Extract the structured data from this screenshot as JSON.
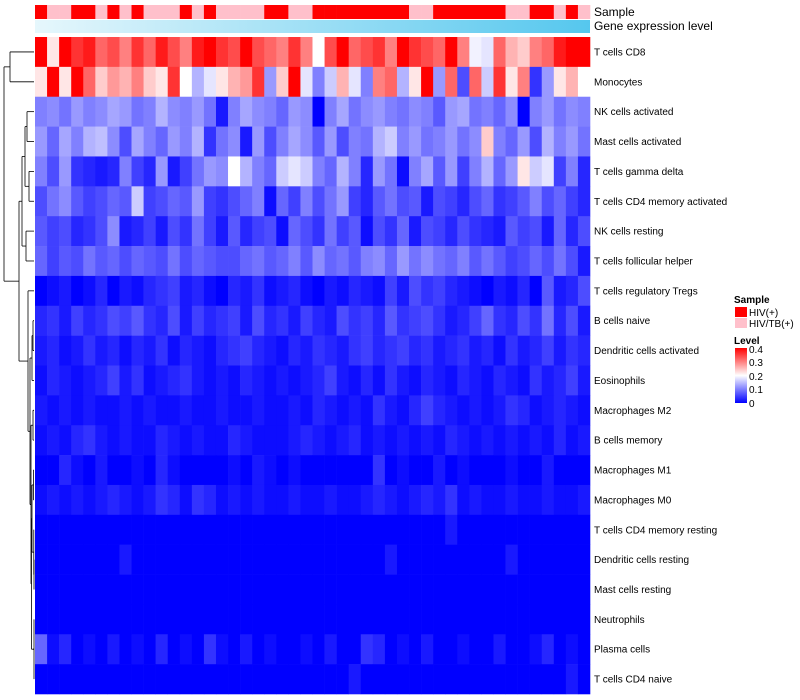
{
  "chart_data": {
    "type": "heatmap",
    "title": "",
    "rows": [
      "T cells CD8",
      "Monocytes",
      "NK cells activated",
      "Mast cells activated",
      "T cells gamma delta",
      "T cells CD4 memory activated",
      "NK cells resting",
      "T cells follicular helper",
      "T cells regulatory  Tregs",
      "B cells naive",
      "Dendritic cells activated",
      "Eosinophils",
      "Macrophages M2",
      "B cells memory",
      "Macrophages M1",
      "Macrophages M0",
      "T cells CD4 memory resting",
      "Dendritic cells resting",
      "Mast cells resting",
      "Neutrophils",
      "Plasma cells",
      "T cells CD4 naive"
    ],
    "n_columns": 46,
    "sample_groups": [
      "HIV(+)",
      "HIV/TB(+)",
      "HIV/TB(+)",
      "HIV(+)",
      "HIV(+)",
      "HIV/TB(+)",
      "HIV(+)",
      "HIV/TB(+)",
      "HIV(+)",
      "HIV/TB(+)",
      "HIV/TB(+)",
      "HIV/TB(+)",
      "HIV(+)",
      "HIV/TB(+)",
      "HIV(+)",
      "HIV/TB(+)",
      "HIV/TB(+)",
      "HIV/TB(+)",
      "HIV/TB(+)",
      "HIV(+)",
      "HIV(+)",
      "HIV/TB(+)",
      "HIV/TB(+)",
      "HIV(+)",
      "HIV(+)",
      "HIV(+)",
      "HIV(+)",
      "HIV(+)",
      "HIV(+)",
      "HIV(+)",
      "HIV(+)",
      "HIV/TB(+)",
      "HIV/TB(+)",
      "HIV(+)",
      "HIV(+)",
      "HIV(+)",
      "HIV(+)",
      "HIV(+)",
      "HIV(+)",
      "HIV/TB(+)",
      "HIV/TB(+)",
      "HIV(+)",
      "HIV(+)",
      "HIV/TB(+)",
      "HIV(+)",
      "HIV/TB(+)"
    ],
    "annotations": [
      {
        "label": "Sample"
      },
      {
        "label": "Gene expression level"
      }
    ],
    "values": [
      [
        0.4,
        0.22,
        0.4,
        0.36,
        0.38,
        0.32,
        0.34,
        0.3,
        0.36,
        0.32,
        0.38,
        0.34,
        0.3,
        0.38,
        0.4,
        0.36,
        0.34,
        0.4,
        0.34,
        0.32,
        0.3,
        0.36,
        0.3,
        0.2,
        0.34,
        0.4,
        0.32,
        0.34,
        0.36,
        0.3,
        0.4,
        0.36,
        0.34,
        0.32,
        0.4,
        0.3,
        0.19,
        0.18,
        0.32,
        0.26,
        0.24,
        0.3,
        0.32,
        0.38,
        0.4,
        0.4
      ],
      [
        0.22,
        0.4,
        0.22,
        0.4,
        0.32,
        0.24,
        0.28,
        0.26,
        0.3,
        0.24,
        0.22,
        0.36,
        0.2,
        0.14,
        0.18,
        0.22,
        0.26,
        0.28,
        0.36,
        0.12,
        0.24,
        0.4,
        0.18,
        0.1,
        0.16,
        0.26,
        0.18,
        0.1,
        0.3,
        0.32,
        0.14,
        0.22,
        0.4,
        0.12,
        0.32,
        0.06,
        0.32,
        0.16,
        0.36,
        0.22,
        0.3,
        0.04,
        0.12,
        0.22,
        0.26,
        0.2
      ],
      [
        0.1,
        0.11,
        0.09,
        0.12,
        0.1,
        0.11,
        0.13,
        0.12,
        0.09,
        0.1,
        0.14,
        0.11,
        0.1,
        0.12,
        0.09,
        0.02,
        0.1,
        0.13,
        0.11,
        0.1,
        0.08,
        0.12,
        0.11,
        0.0,
        0.1,
        0.13,
        0.09,
        0.11,
        0.12,
        0.1,
        0.09,
        0.11,
        0.1,
        0.07,
        0.12,
        0.13,
        0.09,
        0.1,
        0.08,
        0.11,
        0.0,
        0.1,
        0.12,
        0.09,
        0.11,
        0.1
      ],
      [
        0.12,
        0.08,
        0.13,
        0.1,
        0.14,
        0.15,
        0.11,
        0.06,
        0.13,
        0.1,
        0.08,
        0.12,
        0.1,
        0.14,
        0.04,
        0.09,
        0.11,
        0.02,
        0.12,
        0.06,
        0.1,
        0.13,
        0.11,
        0.07,
        0.12,
        0.06,
        0.1,
        0.09,
        0.14,
        0.16,
        0.1,
        0.12,
        0.09,
        0.1,
        0.12,
        0.09,
        0.11,
        0.24,
        0.1,
        0.08,
        0.12,
        0.06,
        0.14,
        0.1,
        0.12,
        0.09
      ],
      [
        0.1,
        0.06,
        0.12,
        0.04,
        0.03,
        0.02,
        0.03,
        0.1,
        0.05,
        0.03,
        0.12,
        0.02,
        0.05,
        0.09,
        0.12,
        0.11,
        0.2,
        0.14,
        0.1,
        0.08,
        0.16,
        0.18,
        0.16,
        0.1,
        0.08,
        0.14,
        0.1,
        0.03,
        0.12,
        0.09,
        0.01,
        0.1,
        0.13,
        0.07,
        0.12,
        0.05,
        0.1,
        0.14,
        0.08,
        0.12,
        0.22,
        0.16,
        0.18,
        0.05,
        0.1,
        0.03
      ],
      [
        0.06,
        0.09,
        0.11,
        0.07,
        0.05,
        0.06,
        0.08,
        0.07,
        0.16,
        0.05,
        0.06,
        0.08,
        0.07,
        0.12,
        0.05,
        0.04,
        0.06,
        0.08,
        0.1,
        0.01,
        0.08,
        0.05,
        0.1,
        0.06,
        0.09,
        0.12,
        0.05,
        0.03,
        0.07,
        0.09,
        0.06,
        0.07,
        0.02,
        0.06,
        0.05,
        0.03,
        0.06,
        0.08,
        0.04,
        0.05,
        0.07,
        0.1,
        0.06,
        0.08,
        0.05,
        0.03
      ],
      [
        0.07,
        0.05,
        0.06,
        0.03,
        0.04,
        0.06,
        0.11,
        0.02,
        0.03,
        0.05,
        0.02,
        0.06,
        0.04,
        0.09,
        0.05,
        0.02,
        0.07,
        0.03,
        0.05,
        0.06,
        0.01,
        0.08,
        0.06,
        0.04,
        0.09,
        0.05,
        0.07,
        0.01,
        0.06,
        0.04,
        0.08,
        0.02,
        0.06,
        0.05,
        0.03,
        0.06,
        0.04,
        0.03,
        0.02,
        0.07,
        0.05,
        0.06,
        0.02,
        0.08,
        0.03,
        0.06
      ],
      [
        0.08,
        0.05,
        0.07,
        0.06,
        0.09,
        0.07,
        0.08,
        0.06,
        0.08,
        0.07,
        0.06,
        0.09,
        0.06,
        0.08,
        0.07,
        0.06,
        0.06,
        0.08,
        0.09,
        0.07,
        0.08,
        0.1,
        0.07,
        0.11,
        0.08,
        0.09,
        0.07,
        0.1,
        0.11,
        0.08,
        0.12,
        0.09,
        0.11,
        0.09,
        0.08,
        0.1,
        0.07,
        0.09,
        0.07,
        0.05,
        0.06,
        0.08,
        0.06,
        0.09,
        0.06,
        0.02
      ],
      [
        0.0,
        0.01,
        0.02,
        0.0,
        0.01,
        0.03,
        0.0,
        0.02,
        0.01,
        0.03,
        0.04,
        0.05,
        0.02,
        0.03,
        0.01,
        0.0,
        0.03,
        0.02,
        0.04,
        0.01,
        0.02,
        0.03,
        0.01,
        0.0,
        0.02,
        0.01,
        0.03,
        0.02,
        0.01,
        0.05,
        0.02,
        0.06,
        0.04,
        0.05,
        0.03,
        0.02,
        0.01,
        0.0,
        0.02,
        0.01,
        0.03,
        0.0,
        0.07,
        0.02,
        0.03,
        0.06
      ],
      [
        0.03,
        0.04,
        0.02,
        0.05,
        0.03,
        0.04,
        0.06,
        0.05,
        0.07,
        0.04,
        0.03,
        0.06,
        0.02,
        0.05,
        0.03,
        0.04,
        0.05,
        0.02,
        0.06,
        0.03,
        0.04,
        0.02,
        0.05,
        0.03,
        0.02,
        0.06,
        0.04,
        0.05,
        0.03,
        0.07,
        0.04,
        0.05,
        0.06,
        0.04,
        0.02,
        0.03,
        0.05,
        0.08,
        0.04,
        0.03,
        0.06,
        0.04,
        0.09,
        0.03,
        0.06,
        0.02
      ],
      [
        0.02,
        0.03,
        0.01,
        0.02,
        0.04,
        0.02,
        0.03,
        0.01,
        0.03,
        0.02,
        0.04,
        0.01,
        0.03,
        0.02,
        0.01,
        0.03,
        0.04,
        0.05,
        0.03,
        0.02,
        0.01,
        0.03,
        0.02,
        0.04,
        0.03,
        0.02,
        0.04,
        0.05,
        0.03,
        0.04,
        0.05,
        0.03,
        0.04,
        0.02,
        0.03,
        0.04,
        0.02,
        0.03,
        0.01,
        0.04,
        0.02,
        0.03,
        0.05,
        0.02,
        0.04,
        0.03
      ],
      [
        0.01,
        0.03,
        0.02,
        0.01,
        0.02,
        0.03,
        0.05,
        0.02,
        0.04,
        0.01,
        0.02,
        0.03,
        0.04,
        0.02,
        0.01,
        0.02,
        0.01,
        0.03,
        0.02,
        0.01,
        0.02,
        0.01,
        0.02,
        0.03,
        0.05,
        0.02,
        0.01,
        0.03,
        0.01,
        0.04,
        0.02,
        0.01,
        0.03,
        0.02,
        0.01,
        0.03,
        0.02,
        0.01,
        0.03,
        0.02,
        0.01,
        0.04,
        0.02,
        0.03,
        0.05,
        0.02
      ],
      [
        0.02,
        0.01,
        0.02,
        0.01,
        0.02,
        0.01,
        0.01,
        0.02,
        0.01,
        0.02,
        0.01,
        0.01,
        0.02,
        0.01,
        0.01,
        0.02,
        0.01,
        0.01,
        0.02,
        0.01,
        0.01,
        0.02,
        0.01,
        0.03,
        0.02,
        0.01,
        0.02,
        0.01,
        0.04,
        0.02,
        0.01,
        0.03,
        0.05,
        0.03,
        0.02,
        0.01,
        0.02,
        0.01,
        0.02,
        0.04,
        0.03,
        0.01,
        0.02,
        0.03,
        0.02,
        0.01
      ],
      [
        0.01,
        0.02,
        0.01,
        0.03,
        0.04,
        0.02,
        0.01,
        0.02,
        0.01,
        0.01,
        0.03,
        0.02,
        0.01,
        0.02,
        0.01,
        0.01,
        0.03,
        0.02,
        0.01,
        0.01,
        0.01,
        0.02,
        0.03,
        0.02,
        0.01,
        0.02,
        0.03,
        0.01,
        0.02,
        0.01,
        0.02,
        0.01,
        0.02,
        0.01,
        0.03,
        0.02,
        0.01,
        0.02,
        0.01,
        0.02,
        0.01,
        0.02,
        0.01,
        0.03,
        0.01,
        0.02
      ],
      [
        0.0,
        0.0,
        0.03,
        0.01,
        0.0,
        0.02,
        0.0,
        0.0,
        0.01,
        0.0,
        0.03,
        0.01,
        0.0,
        0.0,
        0.0,
        0.0,
        0.01,
        0.0,
        0.02,
        0.01,
        0.0,
        0.01,
        0.0,
        0.0,
        0.0,
        0.0,
        0.0,
        0.0,
        0.04,
        0.0,
        0.01,
        0.0,
        0.0,
        0.02,
        0.0,
        0.01,
        0.0,
        0.0,
        0.0,
        0.01,
        0.0,
        0.0,
        0.02,
        0.0,
        0.0,
        0.0
      ],
      [
        0.01,
        0.02,
        0.01,
        0.02,
        0.01,
        0.02,
        0.03,
        0.02,
        0.01,
        0.02,
        0.04,
        0.03,
        0.01,
        0.04,
        0.03,
        0.01,
        0.02,
        0.01,
        0.02,
        0.01,
        0.01,
        0.02,
        0.01,
        0.01,
        0.02,
        0.01,
        0.01,
        0.02,
        0.03,
        0.02,
        0.01,
        0.02,
        0.03,
        0.02,
        0.04,
        0.01,
        0.02,
        0.01,
        0.01,
        0.02,
        0.01,
        0.01,
        0.02,
        0.01,
        0.01,
        0.02
      ],
      [
        0.0,
        0.0,
        0.0,
        0.0,
        0.0,
        0.0,
        0.0,
        0.0,
        0.0,
        0.0,
        0.0,
        0.0,
        0.0,
        0.0,
        0.0,
        0.0,
        0.0,
        0.0,
        0.0,
        0.0,
        0.0,
        0.0,
        0.0,
        0.0,
        0.0,
        0.0,
        0.0,
        0.0,
        0.0,
        0.0,
        0.0,
        0.0,
        0.0,
        0.0,
        0.02,
        0.0,
        0.0,
        0.0,
        0.0,
        0.0,
        0.0,
        0.0,
        0.0,
        0.0,
        0.0,
        0.0
      ],
      [
        0.0,
        0.0,
        0.0,
        0.0,
        0.0,
        0.0,
        0.0,
        0.02,
        0.0,
        0.0,
        0.0,
        0.0,
        0.0,
        0.0,
        0.0,
        0.0,
        0.0,
        0.0,
        0.0,
        0.0,
        0.0,
        0.0,
        0.0,
        0.0,
        0.0,
        0.0,
        0.0,
        0.0,
        0.0,
        0.02,
        0.0,
        0.0,
        0.0,
        0.0,
        0.0,
        0.0,
        0.0,
        0.0,
        0.0,
        0.02,
        0.0,
        0.0,
        0.0,
        0.0,
        0.0,
        0.0
      ],
      [
        0.0,
        0.0,
        0.0,
        0.0,
        0.0,
        0.0,
        0.0,
        0.0,
        0.0,
        0.0,
        0.0,
        0.0,
        0.0,
        0.0,
        0.0,
        0.0,
        0.0,
        0.0,
        0.0,
        0.0,
        0.0,
        0.0,
        0.0,
        0.0,
        0.0,
        0.0,
        0.0,
        0.0,
        0.0,
        0.0,
        0.0,
        0.0,
        0.0,
        0.0,
        0.0,
        0.0,
        0.0,
        0.0,
        0.0,
        0.0,
        0.0,
        0.0,
        0.0,
        0.0,
        0.0,
        0.0
      ],
      [
        0.0,
        0.0,
        0.0,
        0.0,
        0.0,
        0.0,
        0.0,
        0.0,
        0.0,
        0.0,
        0.0,
        0.0,
        0.0,
        0.0,
        0.0,
        0.0,
        0.0,
        0.0,
        0.0,
        0.0,
        0.0,
        0.0,
        0.0,
        0.0,
        0.0,
        0.0,
        0.0,
        0.0,
        0.0,
        0.0,
        0.0,
        0.0,
        0.0,
        0.0,
        0.0,
        0.0,
        0.0,
        0.0,
        0.0,
        0.0,
        0.0,
        0.0,
        0.0,
        0.0,
        0.0,
        0.0
      ],
      [
        0.08,
        0.01,
        0.03,
        0.0,
        0.01,
        0.0,
        0.02,
        0.0,
        0.01,
        0.0,
        0.03,
        0.0,
        0.01,
        0.0,
        0.04,
        0.01,
        0.0,
        0.02,
        0.0,
        0.01,
        0.0,
        0.0,
        0.01,
        0.0,
        0.02,
        0.0,
        0.0,
        0.04,
        0.03,
        0.0,
        0.01,
        0.0,
        0.02,
        0.0,
        0.0,
        0.01,
        0.0,
        0.0,
        0.02,
        0.0,
        0.0,
        0.01,
        0.03,
        0.0,
        0.01,
        0.0
      ],
      [
        0.0,
        0.0,
        0.0,
        0.0,
        0.0,
        0.0,
        0.0,
        0.0,
        0.0,
        0.0,
        0.0,
        0.0,
        0.0,
        0.0,
        0.0,
        0.0,
        0.0,
        0.0,
        0.0,
        0.0,
        0.0,
        0.0,
        0.0,
        0.0,
        0.0,
        0.0,
        0.02,
        0.0,
        0.0,
        0.0,
        0.0,
        0.0,
        0.0,
        0.0,
        0.0,
        0.0,
        0.0,
        0.0,
        0.0,
        0.0,
        0.0,
        0.0,
        0.0,
        0.0,
        0.02,
        0.0
      ]
    ],
    "color_scale": {
      "low": "#0000ff",
      "mid": "#ffffff",
      "high": "#ff0000",
      "range": [
        0,
        0.4
      ],
      "ticks": [
        "0.4",
        "0.3",
        "0.2",
        "0.1",
        "0"
      ]
    },
    "legend": {
      "placement": "right",
      "sample_title": "Sample",
      "sample_entries": [
        {
          "label": "HIV(+)",
          "color": "#ff0000"
        },
        {
          "label": "HIV/TB(+)",
          "color": "#ffc0cb"
        }
      ],
      "level_title": "Level"
    },
    "gene_expression_gradient": {
      "start": "#e6f7fc",
      "end": "#55c7ee"
    },
    "xlabel": "",
    "ylabel": ""
  }
}
